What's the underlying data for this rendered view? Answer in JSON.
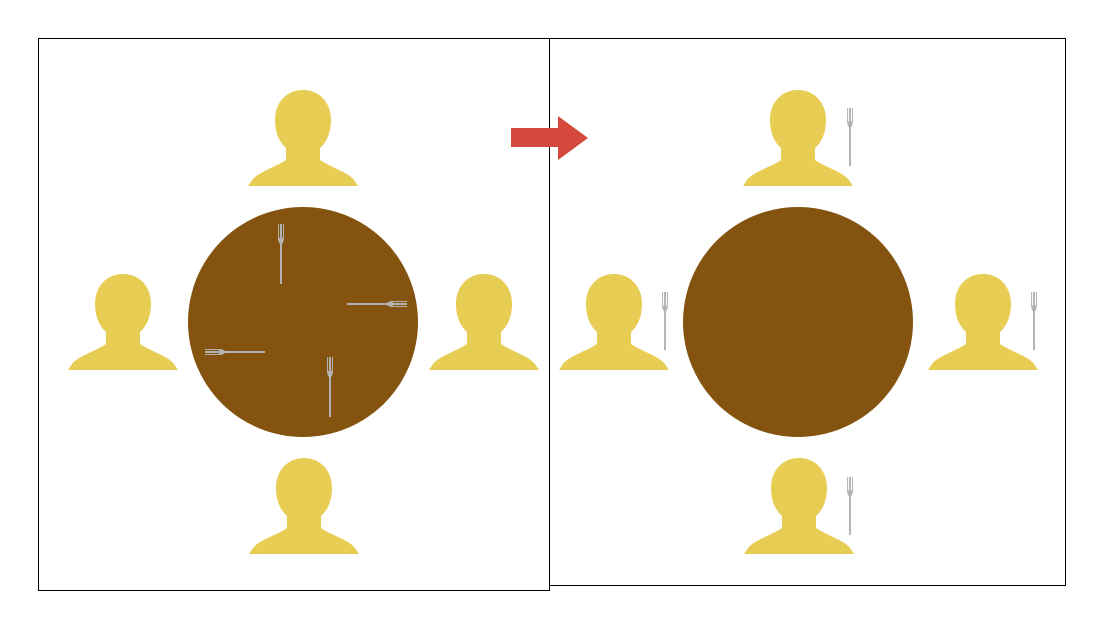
{
  "colors": {
    "background": "#ffffff",
    "frame": "#000000",
    "person": "#e8cd55",
    "table": "#84530f",
    "fork": "#b3b3b3",
    "arrow": "#d4493c"
  },
  "icons": {
    "person": "person-bust-icon",
    "fork": "fork-icon",
    "arrow": "arrow-right-icon",
    "table": "round-table"
  },
  "panels": [
    {
      "id": "before",
      "persons": [
        "top",
        "left",
        "right",
        "bottom"
      ],
      "forks_location": "on-table",
      "fork_count": 4
    },
    {
      "id": "after",
      "persons": [
        "top",
        "left",
        "right",
        "bottom"
      ],
      "forks_location": "beside-each-person",
      "fork_count": 4
    }
  ]
}
